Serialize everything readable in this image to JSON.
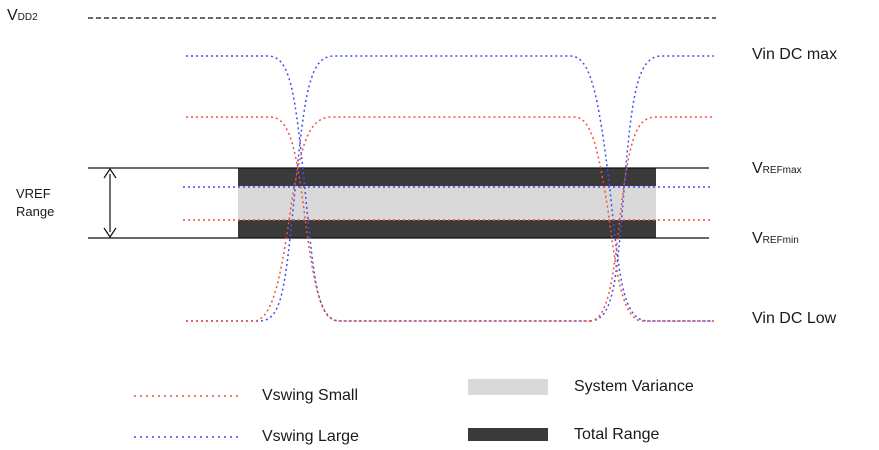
{
  "vdd2": {
    "main": "V",
    "sub": "DD2"
  },
  "vin_dc_max": "Vin DC max",
  "vin_dc_low": "Vin DC Low",
  "vref_max": {
    "main": "V",
    "sub": "REFmax"
  },
  "vref_min": {
    "main": "V",
    "sub": "REFmin"
  },
  "vref_range": {
    "line1": "VREF",
    "line2": "Range"
  },
  "legend": {
    "vswing_small": "Vswing Small",
    "vswing_large": "Vswing Large",
    "system_variance": "System Variance",
    "total_range": "Total Range"
  },
  "colors": {
    "small": "#f0503c",
    "large": "#3c4ef0",
    "system_variance": "#d9d9d9",
    "total_range": "#3a3a3a",
    "line": "#111111"
  }
}
